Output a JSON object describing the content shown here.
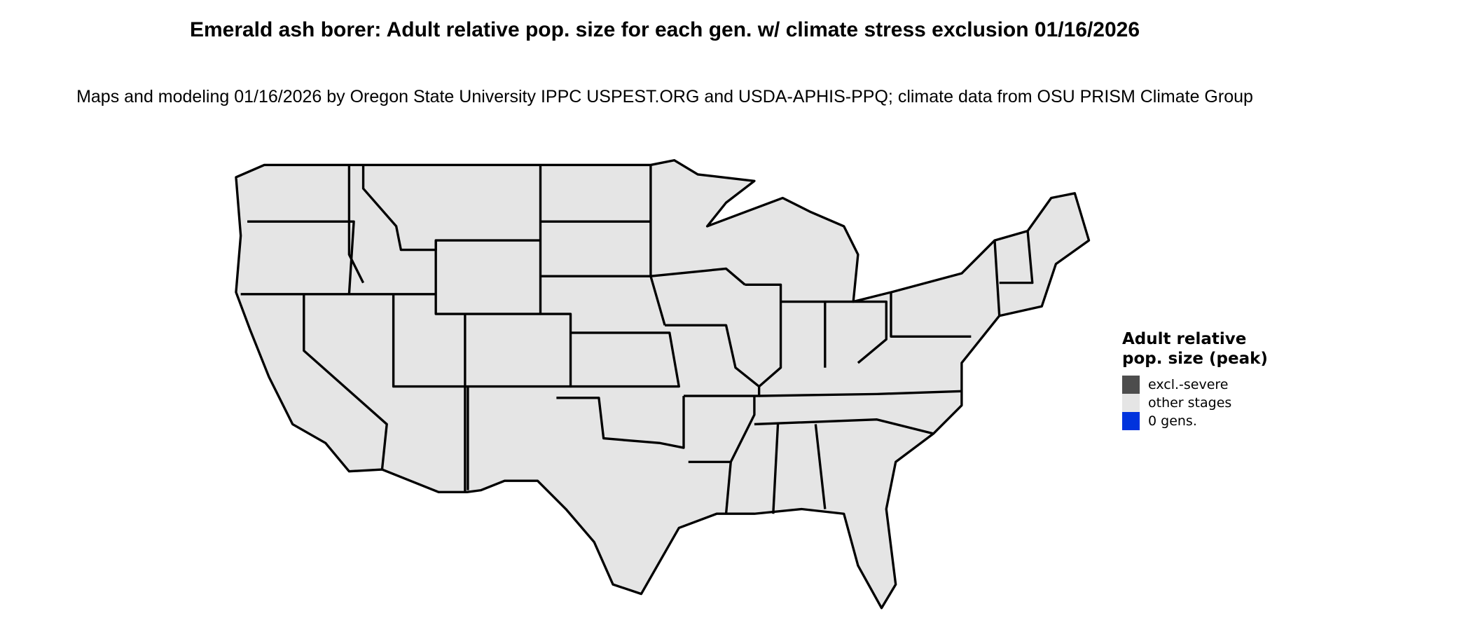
{
  "title": "Emerald ash borer: Adult relative pop. size for each gen. w/ climate stress exclusion 01/16/2026",
  "subtitle": "Maps and modeling 01/16/2026 by Oregon State University IPPC USPEST.ORG and USDA-APHIS-PPQ; climate data from OSU PRISM Climate Group",
  "map": {
    "region": "Contiguous United States",
    "fill_color": "#e5e5e5",
    "border_color": "#000000"
  },
  "legend": {
    "title": "Adult relative pop. size (peak)",
    "items": [
      {
        "label": "excl.-severe",
        "color": "#4d4d4d"
      },
      {
        "label": "other stages",
        "color": "#e5e5e5"
      },
      {
        "label": "0 gens.",
        "color": "#0033dd"
      }
    ]
  }
}
